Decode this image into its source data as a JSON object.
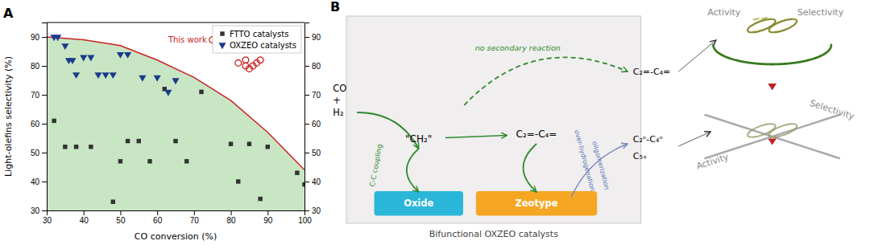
{
  "chart_data": [
    {
      "type": "scatter",
      "xlabel": "CO conversion (%)",
      "ylabel": "Light-olefins selectivity (%)",
      "xlim": [
        30,
        100
      ],
      "ylim": [
        30,
        95
      ],
      "y2lim": [
        30,
        95
      ],
      "xticks": [
        30,
        40,
        50,
        60,
        70,
        80,
        90,
        100
      ],
      "yticks": [
        30,
        40,
        50,
        60,
        70,
        80,
        90
      ],
      "y2ticks": [
        30,
        40,
        50,
        60,
        70,
        80,
        90
      ],
      "grid": false,
      "legend": "upper right",
      "annotations": [
        "A",
        "This work"
      ],
      "series": [
        {
          "type": "area",
          "color": "#c8e6c4",
          "x": [
            30,
            40,
            50,
            60,
            70,
            80,
            90,
            100
          ],
          "values": [
            90,
            89,
            87,
            82,
            76,
            68,
            57,
            44
          ]
        },
        {
          "type": "line",
          "color": "#cc2222",
          "x": [
            30,
            40,
            50,
            60,
            70,
            80,
            90,
            100
          ],
          "values": [
            90,
            89,
            87,
            82,
            76,
            68,
            57,
            44
          ]
        },
        {
          "name": "FTTO catalysts",
          "type": "scatter",
          "marker": "square",
          "color": "#333333",
          "x": [
            32,
            35,
            38,
            42,
            48,
            50,
            52,
            55,
            58,
            62,
            65,
            68,
            72,
            80,
            82,
            85,
            88,
            90,
            98,
            100
          ],
          "values": [
            61,
            52,
            52,
            52,
            33,
            47,
            54,
            54,
            47,
            72,
            54,
            47,
            71,
            53,
            40,
            53,
            34,
            52,
            43,
            39
          ]
        },
        {
          "name": "OXZEO catalysts",
          "type": "scatter",
          "marker": "triangle-down",
          "color": "#1a3a8a",
          "x": [
            32,
            33,
            35,
            36,
            37,
            38,
            40,
            42,
            44,
            46,
            48,
            50,
            52,
            56,
            60,
            63,
            65
          ],
          "values": [
            90,
            90,
            87,
            82,
            82,
            77,
            83,
            83,
            77,
            77,
            77,
            84,
            84,
            76,
            76,
            71,
            75
          ]
        },
        {
          "type": "scatter",
          "marker": "circle-open",
          "color": "#cc2222",
          "x": [
            75,
            82,
            84,
            84,
            85,
            86,
            87,
            88
          ],
          "values": [
            89,
            81,
            82,
            80,
            79,
            80,
            81,
            82
          ]
        }
      ]
    },
    {
      "type": "diagram",
      "annotations": [
        "B",
        "CO\n+\nH₂",
        "Oxide",
        "Zeotype",
        "\"CH₂\"",
        "C₂=-C₄=",
        "C-C coupling",
        "over-hydrogenation",
        "oligomerization",
        "no secondary reaction",
        "C₂=-C₄=",
        "C₂ᵒ-C₄ᵒ",
        "C₅₊",
        "Bifunctional OXZEO catalysts",
        "Activity",
        "Selectivity",
        "Activity",
        "Selectivity"
      ]
    }
  ]
}
